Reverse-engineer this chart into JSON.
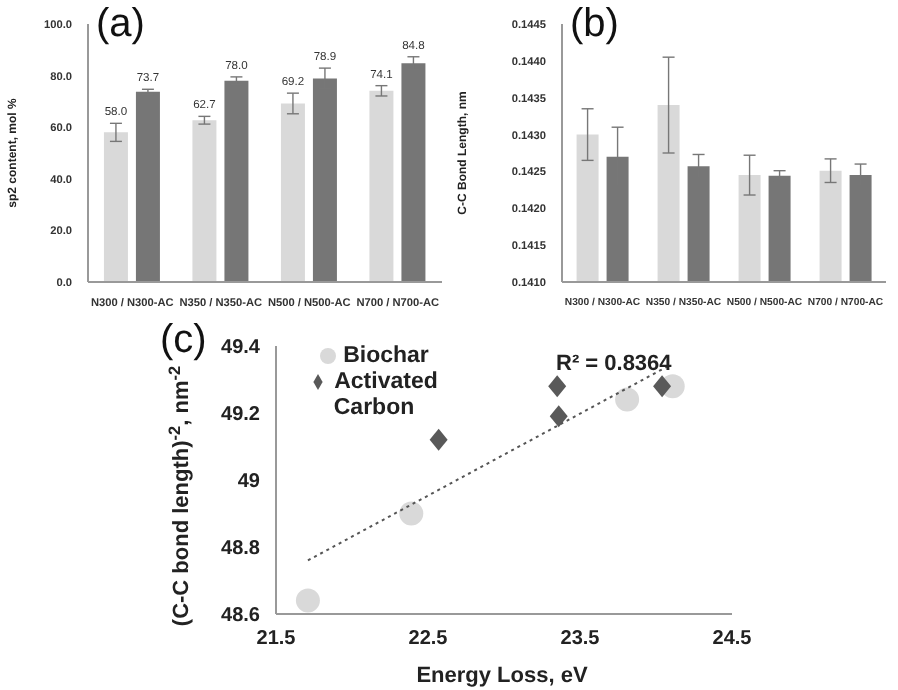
{
  "chart_data": [
    {
      "type": "bar",
      "title": "(a)",
      "ylabel": "sp2 content, mol %",
      "categories": [
        "N300 / N300-AC",
        "N350 / N350-AC",
        "N500 / N500-AC",
        "N700 / N700-AC"
      ],
      "ylim": [
        0,
        100
      ],
      "yticks": [
        {
          "value": 0,
          "label": "0.0"
        },
        {
          "value": 20,
          "label": "20.0"
        },
        {
          "value": 40,
          "label": "40.0"
        },
        {
          "value": 60,
          "label": "60.0"
        },
        {
          "value": 80,
          "label": "80.0"
        },
        {
          "value": 100,
          "label": "100.0"
        }
      ],
      "series": [
        {
          "color": "#d9d9d9",
          "values": [
            58.0,
            62.7,
            69.2,
            74.1
          ],
          "errors": [
            3.5,
            1.5,
            4,
            2
          ],
          "value_labels": [
            "58.0",
            "62.7",
            "69.2",
            "74.1"
          ]
        },
        {
          "color": "#767676",
          "values": [
            73.7,
            78.0,
            78.9,
            84.8
          ],
          "errors": [
            1,
            1.5,
            4,
            2.5
          ],
          "value_labels": [
            "73.7",
            "78.0",
            "78.9",
            "84.8"
          ]
        }
      ]
    },
    {
      "type": "bar",
      "title": "(b)",
      "ylabel": "C-C Bond Length, nm",
      "categories": [
        "N300 / N300-AC",
        "N350 / N350-AC",
        "N500 / N500-AC",
        "N700 / N700-AC"
      ],
      "ylim": [
        0.141,
        0.1445
      ],
      "yticks": [
        {
          "value": 0.141,
          "label": "0.1410"
        },
        {
          "value": 0.1415,
          "label": "0.1415"
        },
        {
          "value": 0.142,
          "label": "0.1420"
        },
        {
          "value": 0.1425,
          "label": "0.1425"
        },
        {
          "value": 0.143,
          "label": "0.1430"
        },
        {
          "value": 0.1435,
          "label": "0.1435"
        },
        {
          "value": 0.144,
          "label": "0.1440"
        },
        {
          "value": 0.1445,
          "label": "0.1445"
        }
      ],
      "series": [
        {
          "color": "#d9d9d9",
          "values": [
            0.143,
            0.1434,
            0.14245,
            0.14251
          ],
          "errors": [
            0.00035,
            0.00065,
            0.00027,
            0.00016
          ]
        },
        {
          "color": "#767676",
          "values": [
            0.1427,
            0.14257,
            0.14244,
            0.14245
          ],
          "errors": [
            0.0004,
            0.00016,
            7e-05,
            0.00015
          ]
        }
      ]
    },
    {
      "type": "scatter",
      "title": "(c)",
      "xlabel": "Energy Loss, eV",
      "ylabel": "(C-C bond length)$^{-2}$, nm$^{-2}$",
      "xlim": [
        21.5,
        24.5
      ],
      "xticks": [
        21.5,
        22.5,
        23.5,
        24.5
      ],
      "ylim": [
        48.6,
        49.4
      ],
      "yticks": [
        48.6,
        48.8,
        49,
        49.2,
        49.4
      ],
      "legend": "top left",
      "annotations": [
        "R² = 0.8364"
      ],
      "series": [
        {
          "name": "Biochar",
          "color": "#d9d9d9",
          "marker": "circle",
          "x": [
            21.71,
            22.39,
            23.81,
            24.11
          ],
          "values": [
            48.64,
            48.9,
            49.24,
            49.28
          ]
        },
        {
          "name": "Activated Carbon",
          "color": "#595959",
          "marker": "diamond",
          "x": [
            22.57,
            23.35,
            23.36,
            24.04
          ],
          "values": [
            49.12,
            49.28,
            49.19,
            49.28
          ]
        },
        {
          "type": "line",
          "color": "#555555",
          "line_style": "dotted",
          "x": [
            21.71,
            24.08
          ],
          "values": [
            48.76,
            49.34
          ]
        }
      ]
    }
  ]
}
